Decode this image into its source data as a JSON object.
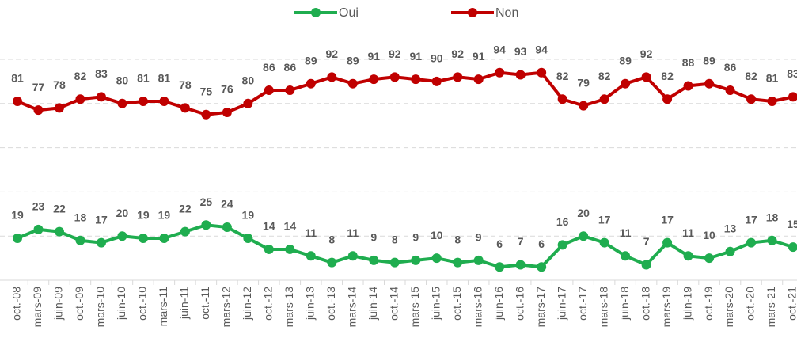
{
  "chart_data": {
    "type": "line",
    "categories": [
      "oct.-08",
      "mars-09",
      "juin-09",
      "oct.-09",
      "mars-10",
      "juin-10",
      "oct.-10",
      "mars-11",
      "juin-11",
      "oct.-11",
      "mars-12",
      "juin-12",
      "oct.-12",
      "mars-13",
      "juin-13",
      "oct.-13",
      "mars-14",
      "juin-14",
      "oct.-14",
      "mars-15",
      "juin-15",
      "oct.-15",
      "mars-16",
      "juin-16",
      "oct.-16",
      "mars-17",
      "juin-17",
      "oct.-17",
      "mars-18",
      "juin-18",
      "oct.-18",
      "mars-19",
      "juin-19",
      "oct.-19",
      "mars-20",
      "oct.-20",
      "mars-21",
      "oct.-21"
    ],
    "series": [
      {
        "name": "Oui",
        "color": "#1fad4f",
        "values": [
          19,
          23,
          22,
          18,
          17,
          20,
          19,
          19,
          22,
          25,
          24,
          19,
          14,
          14,
          11,
          8,
          11,
          9,
          8,
          9,
          10,
          8,
          9,
          6,
          7,
          6,
          16,
          20,
          17,
          11,
          7,
          17,
          11,
          10,
          13,
          17,
          18,
          15
        ]
      },
      {
        "name": "Non",
        "color": "#c00000",
        "values": [
          81,
          77,
          78,
          82,
          83,
          80,
          81,
          81,
          78,
          75,
          76,
          80,
          86,
          86,
          89,
          92,
          89,
          91,
          92,
          91,
          90,
          92,
          91,
          94,
          93,
          94,
          82,
          79,
          82,
          89,
          92,
          82,
          88,
          89,
          86,
          82,
          81,
          83
        ]
      }
    ],
    "ylim": [
      0,
      100
    ],
    "yticks": [
      0,
      20,
      40,
      60,
      80,
      100
    ],
    "grid": true,
    "legend": "top"
  }
}
